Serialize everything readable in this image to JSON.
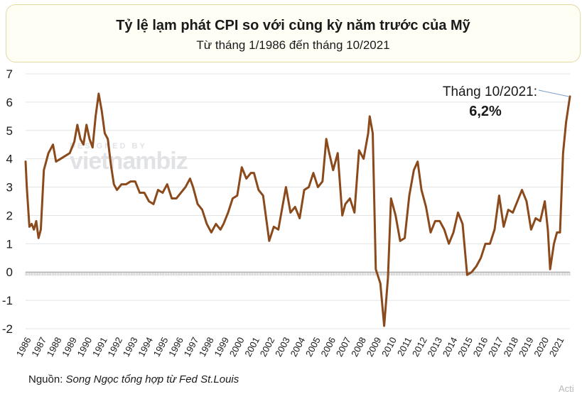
{
  "chart_data": {
    "type": "line",
    "title": "Tỷ lệ lạm phát CPI so với cùng kỳ năm trước của Mỹ",
    "subtitle": "Từ tháng 1/1986 đến tháng 10/2021",
    "ylim": [
      -2,
      7
    ],
    "yticks": [
      "7",
      "6",
      "5",
      "4",
      "3",
      "2",
      "1",
      "0",
      "-1",
      "-2"
    ],
    "yticks_values": [
      7,
      6,
      5,
      4,
      3,
      2,
      1,
      0,
      -1,
      -2
    ],
    "xlim": [
      1986.0,
      2021.75
    ],
    "xticks": [
      "1986",
      "1987",
      "1988",
      "1989",
      "1990",
      "1991",
      "1992",
      "1993",
      "1994",
      "1995",
      "1996",
      "1997",
      "1998",
      "1999",
      "2000",
      "2001",
      "2002",
      "2003",
      "2004",
      "2005",
      "2006",
      "2007",
      "2008",
      "2009",
      "2010",
      "2011",
      "2012",
      "2013",
      "2014",
      "2015",
      "2016",
      "2017",
      "2018",
      "2019",
      "2020",
      "2021"
    ],
    "grid": "horizontal",
    "series": [
      {
        "color": "#8b4a1c",
        "x": [
          1986.0,
          1986.08,
          1986.25,
          1986.4,
          1986.55,
          1986.7,
          1986.85,
          1987.0,
          1987.2,
          1987.5,
          1987.8,
          1988.0,
          1988.3,
          1988.6,
          1988.9,
          1989.2,
          1989.4,
          1989.6,
          1989.8,
          1990.0,
          1990.2,
          1990.4,
          1990.6,
          1990.8,
          1991.0,
          1991.2,
          1991.4,
          1991.6,
          1991.8,
          1992.0,
          1992.3,
          1992.6,
          1992.9,
          1993.2,
          1993.5,
          1993.8,
          1994.1,
          1994.4,
          1994.7,
          1995.0,
          1995.3,
          1995.6,
          1995.9,
          1996.2,
          1996.5,
          1996.8,
          1997.0,
          1997.3,
          1997.6,
          1997.9,
          1998.2,
          1998.5,
          1998.8,
          1999.0,
          1999.3,
          1999.6,
          1999.9,
          2000.2,
          2000.5,
          2000.8,
          2001.0,
          2001.3,
          2001.6,
          2001.8,
          2002.0,
          2002.3,
          2002.6,
          2002.9,
          2003.1,
          2003.4,
          2003.7,
          2004.0,
          2004.3,
          2004.6,
          2004.9,
          2005.2,
          2005.5,
          2005.75,
          2005.9,
          2006.2,
          2006.5,
          2006.8,
          2007.0,
          2007.3,
          2007.6,
          2007.9,
          2008.2,
          2008.5,
          2008.6,
          2008.8,
          2009.0,
          2009.3,
          2009.55,
          2009.8,
          2010.0,
          2010.3,
          2010.6,
          2010.9,
          2011.2,
          2011.5,
          2011.75,
          2012.0,
          2012.3,
          2012.6,
          2012.9,
          2013.2,
          2013.5,
          2013.8,
          2014.1,
          2014.4,
          2014.7,
          2015.0,
          2015.3,
          2015.6,
          2015.9,
          2016.2,
          2016.5,
          2016.8,
          2017.1,
          2017.4,
          2017.7,
          2018.0,
          2018.3,
          2018.6,
          2018.9,
          2019.2,
          2019.5,
          2019.8,
          2020.1,
          2020.3,
          2020.45,
          2020.7,
          2020.9,
          2021.1,
          2021.3,
          2021.5,
          2021.75
        ],
        "y": [
          3.9,
          3.0,
          1.6,
          1.7,
          1.5,
          1.8,
          1.2,
          1.5,
          3.6,
          4.2,
          4.5,
          3.9,
          4.0,
          4.1,
          4.2,
          4.6,
          5.2,
          4.7,
          4.5,
          5.2,
          4.7,
          4.4,
          5.5,
          6.3,
          5.7,
          4.9,
          4.7,
          3.8,
          3.1,
          2.9,
          3.1,
          3.1,
          3.2,
          3.2,
          2.8,
          2.8,
          2.5,
          2.4,
          2.9,
          2.8,
          3.1,
          2.6,
          2.6,
          2.8,
          3.0,
          3.3,
          3.0,
          2.4,
          2.2,
          1.7,
          1.4,
          1.7,
          1.5,
          1.7,
          2.1,
          2.6,
          2.7,
          3.7,
          3.3,
          3.5,
          3.5,
          2.9,
          2.7,
          1.9,
          1.1,
          1.6,
          1.5,
          2.4,
          3.0,
          2.1,
          2.3,
          1.9,
          2.9,
          3.0,
          3.5,
          3.0,
          3.2,
          4.7,
          4.3,
          3.6,
          4.2,
          2.0,
          2.4,
          2.6,
          2.1,
          4.3,
          4.0,
          4.9,
          5.5,
          4.9,
          0.1,
          -0.4,
          -1.9,
          -0.2,
          2.6,
          2.0,
          1.1,
          1.2,
          2.7,
          3.6,
          3.9,
          2.9,
          2.3,
          1.4,
          1.8,
          1.8,
          1.5,
          1.0,
          1.4,
          2.1,
          1.7,
          -0.1,
          0.0,
          0.2,
          0.5,
          1.0,
          1.0,
          1.5,
          2.7,
          1.6,
          2.2,
          2.1,
          2.5,
          2.9,
          2.5,
          1.5,
          1.9,
          1.8,
          2.5,
          1.5,
          0.1,
          1.0,
          1.4,
          1.4,
          4.2,
          5.3,
          6.2
        ]
      }
    ],
    "annotation": {
      "label": "Tháng 10/2021:",
      "value": "6,2%",
      "x": 2021.75,
      "y": 6.2
    },
    "source_label": "Nguồn:",
    "source_text": "Song Ngọc tổng hợp từ Fed St.Louis"
  },
  "watermark": {
    "small": "DESIGNED BY",
    "big": "vietnambiz"
  },
  "corner_text": "Acti"
}
